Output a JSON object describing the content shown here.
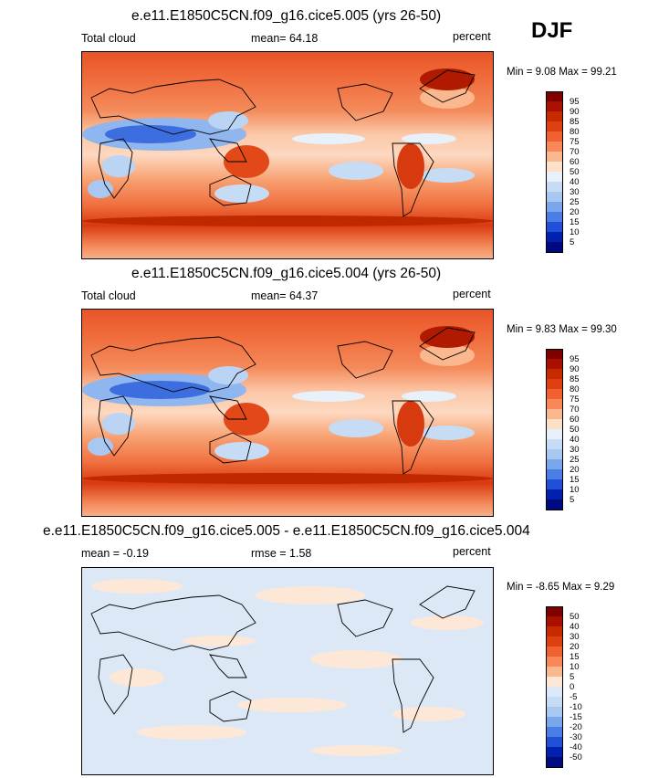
{
  "season": "DJF",
  "panels": [
    {
      "title": "e.e11.E1850C5CN.f09_g16.cice5.005 (yrs 26-50)",
      "left_label": "Total cloud",
      "center_label": "mean=  64.18",
      "right_label": "percent",
      "minmax": "Min =   9.08 Max =  99.21",
      "colorbar_labels": [
        "95",
        "90",
        "85",
        "80",
        "75",
        "70",
        "60",
        "50",
        "40",
        "30",
        "25",
        "20",
        "15",
        "10",
        "5"
      ],
      "colorbar_colors": [
        "#800000",
        "#aa1000",
        "#c82a00",
        "#e04010",
        "#f06030",
        "#f88858",
        "#fbb88e",
        "#fde0c8",
        "#e8f0fa",
        "#c6dcf5",
        "#a8c8f2",
        "#7aa6ec",
        "#4a7ee6",
        "#2050d8",
        "#0020b0",
        "#000a80"
      ]
    },
    {
      "title": "e.e11.E1850C5CN.f09_g16.cice5.004 (yrs 26-50)",
      "left_label": "Total cloud",
      "center_label": "mean=  64.37",
      "right_label": "percent",
      "minmax": "Min =   9.83 Max =  99.30",
      "colorbar_labels": [
        "95",
        "90",
        "85",
        "80",
        "75",
        "70",
        "60",
        "50",
        "40",
        "30",
        "25",
        "20",
        "15",
        "10",
        "5"
      ],
      "colorbar_colors": [
        "#800000",
        "#aa1000",
        "#c82a00",
        "#e04010",
        "#f06030",
        "#f88858",
        "#fbb88e",
        "#fde0c8",
        "#e8f0fa",
        "#c6dcf5",
        "#a8c8f2",
        "#7aa6ec",
        "#4a7ee6",
        "#2050d8",
        "#0020b0",
        "#000a80"
      ]
    },
    {
      "title": "e.e11.E1850C5CN.f09_g16.cice5.005 - e.e11.E1850C5CN.f09_g16.cice5.004",
      "left_label": "mean =  -0.19",
      "center_label": "rmse =   1.58",
      "right_label": "percent",
      "minmax": "Min =  -8.65 Max =   9.29",
      "colorbar_labels": [
        "50",
        "40",
        "30",
        "20",
        "15",
        "10",
        "5",
        "0",
        "-5",
        "-10",
        "-15",
        "-20",
        "-30",
        "-40",
        "-50"
      ],
      "colorbar_colors": [
        "#800000",
        "#aa1000",
        "#c82a00",
        "#e04010",
        "#f06030",
        "#f88858",
        "#fbb88e",
        "#fde8d8",
        "#dde8f6",
        "#c6dcf5",
        "#a8c8f2",
        "#7aa6ec",
        "#4a7ee6",
        "#2050d8",
        "#0020b0",
        "#000a80"
      ]
    }
  ]
}
